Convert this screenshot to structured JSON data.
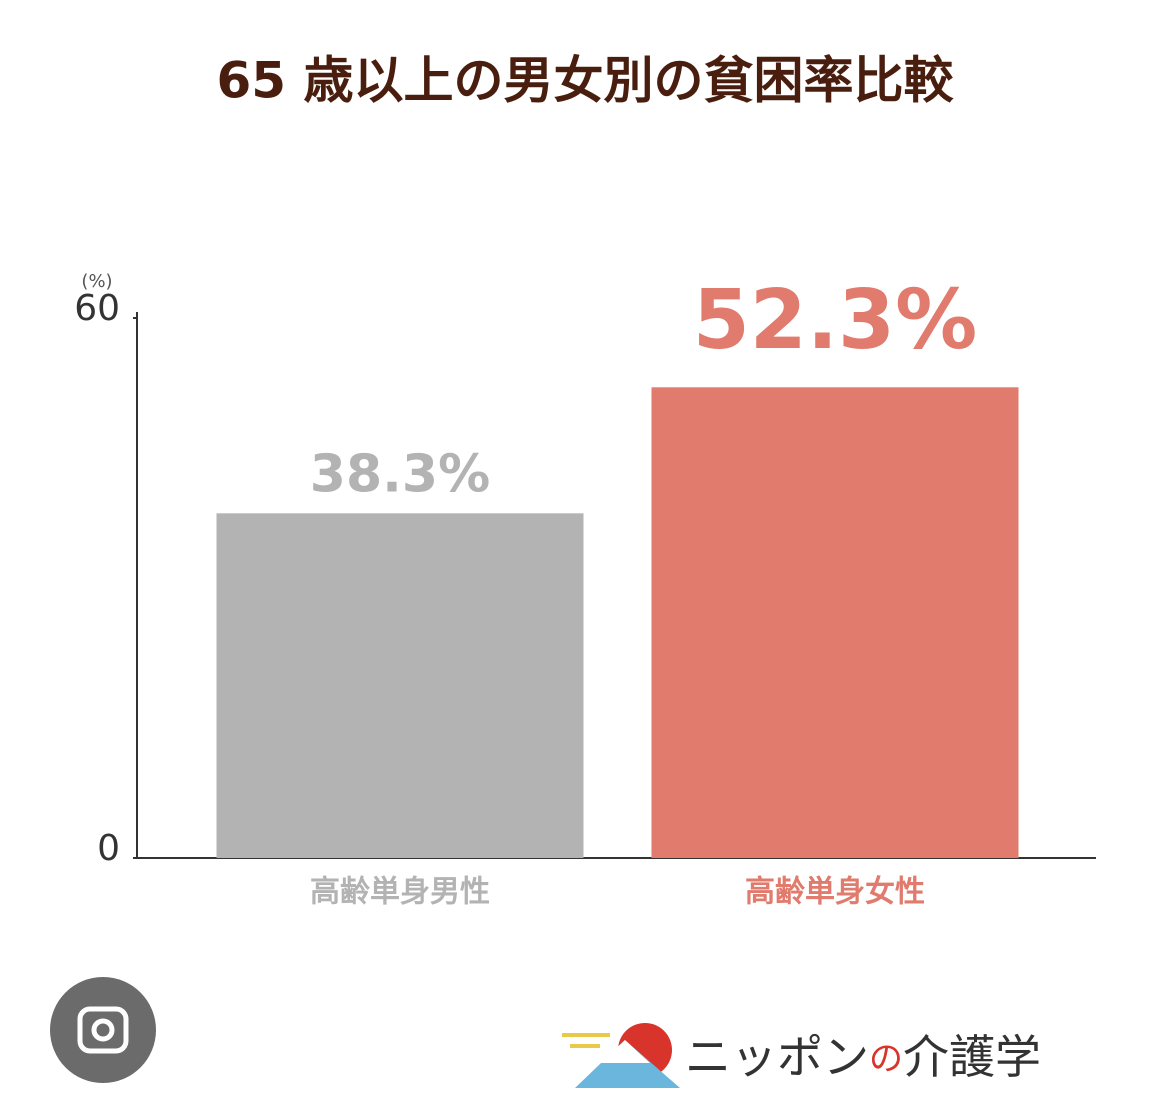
{
  "chart_data": {
    "type": "bar",
    "title": "65 歳以上の男女別の貧困率比較",
    "y_unit": "(%)",
    "categories": [
      "高齢単身男性",
      "高齢単身女性"
    ],
    "values": [
      38.3,
      52.3
    ],
    "value_labels": [
      "38.3%",
      "52.3%"
    ],
    "colors": [
      "#b3b3b3",
      "#e07b6d"
    ],
    "ylim": [
      0,
      60
    ],
    "yticks": [
      0,
      60
    ],
    "grid": false
  },
  "logo": {
    "parts": [
      "ニッポン",
      "の",
      "介護学"
    ]
  }
}
